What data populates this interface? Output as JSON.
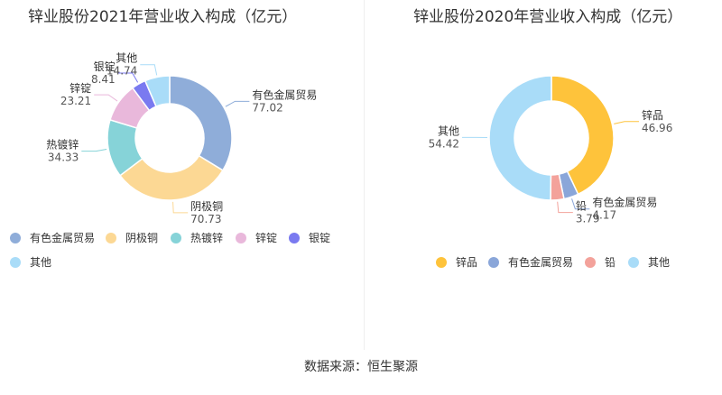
{
  "source": {
    "label": "数据来源：",
    "value": "恒生聚源"
  },
  "chart_data": [
    {
      "type": "pie",
      "style": "donut",
      "title": "锌业股份2021年营业收入构成（亿元）",
      "slices": [
        {
          "name": "有色金属贸易",
          "value": 77.02,
          "value_label": "77.02",
          "color": "#8fadd9"
        },
        {
          "name": "阴极铜",
          "value": 70.73,
          "value_label": "70.73",
          "color": "#fcd894"
        },
        {
          "name": "热镀锌",
          "value": 34.33,
          "value_label": "34.33",
          "color": "#86d3d8"
        },
        {
          "name": "锌锭",
          "value": 23.21,
          "value_label": "23.21",
          "color": "#e9b8db"
        },
        {
          "name": "银锭",
          "value": 8.41,
          "value_label": "8.41",
          "color": "#7a7af0"
        },
        {
          "name": "其他",
          "value": 14.74,
          "value_label": "14.74",
          "color": "#a9dcf8"
        }
      ],
      "legend_position": "bottom"
    },
    {
      "type": "pie",
      "style": "donut",
      "title": "锌业股份2020年营业收入构成（亿元）",
      "slices": [
        {
          "name": "锌品",
          "value": 46.96,
          "value_label": "46.96",
          "color": "#fec33b"
        },
        {
          "name": "有色金属贸易",
          "value": 4.17,
          "value_label": "4.17",
          "color": "#8aa6d9"
        },
        {
          "name": "铅",
          "value": 3.79,
          "value_label": "3.79",
          "color": "#f3a29b"
        },
        {
          "name": "其他",
          "value": 54.42,
          "value_label": "54.42",
          "color": "#a9dcf8"
        }
      ],
      "legend_position": "bottom"
    }
  ]
}
